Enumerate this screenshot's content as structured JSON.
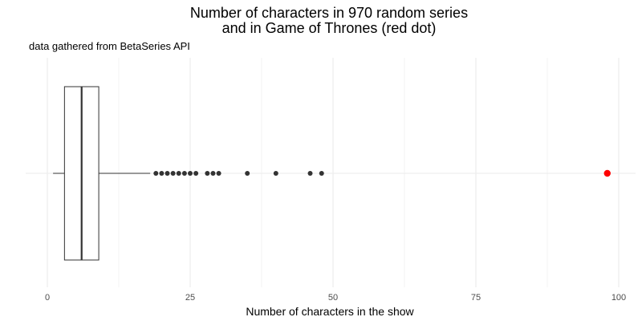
{
  "chart_data": {
    "type": "boxplot",
    "title_line1": "Number of characters in 970 random series",
    "title_line2": "and in Game of Thrones (red dot)",
    "subtitle": "data gathered from BetaSeries API",
    "xlabel": "Number of characters in the show",
    "xlim": [
      -1.5,
      102
    ],
    "x_ticks": [
      0,
      25,
      50,
      75,
      100
    ],
    "x_tick_labels": [
      "0",
      "25",
      "50",
      "75",
      "100"
    ],
    "grid": true,
    "box": {
      "whisker_low": 1,
      "q1": 3,
      "median": 6,
      "q3": 9,
      "whisker_high": 18
    },
    "outliers": [
      19,
      20,
      21,
      22,
      23,
      24,
      25,
      26,
      28,
      29,
      30,
      35,
      40,
      46,
      48
    ],
    "highlight": {
      "value": 98,
      "color": "#ff0000"
    },
    "colors": {
      "grid": "#ebebeb",
      "box_line": "#333333",
      "points": "#333333"
    }
  }
}
